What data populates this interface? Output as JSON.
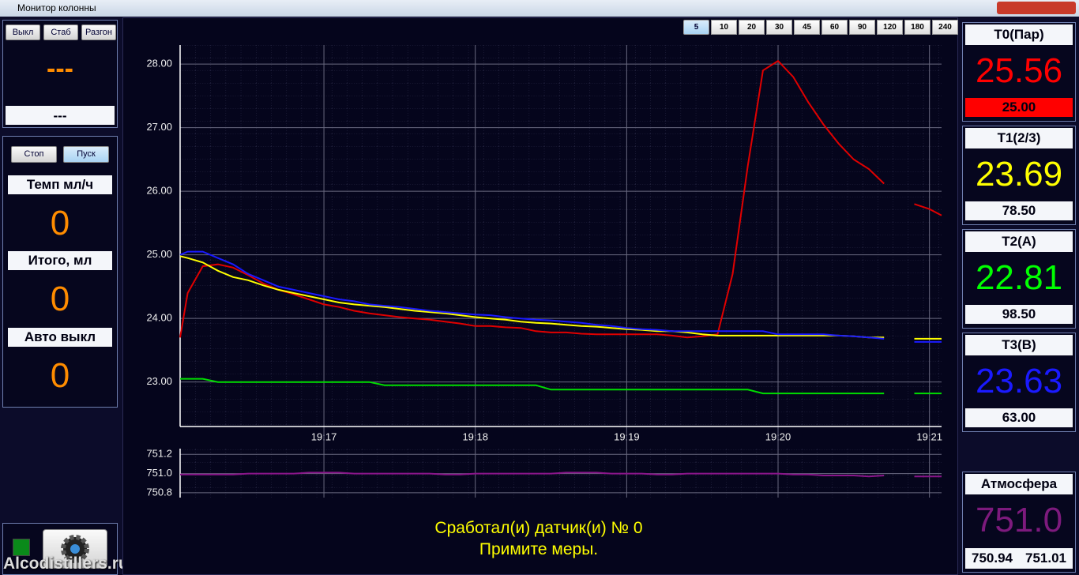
{
  "window": {
    "title": "Монитор колонны"
  },
  "mode_buttons": [
    "Выкл",
    "Стаб",
    "Разгон"
  ],
  "mode_display": {
    "value": "---",
    "status": "---"
  },
  "dose": {
    "buttons": [
      "Стоп",
      "Пуск"
    ],
    "fields": [
      {
        "label": "Темп мл/ч",
        "value": "0"
      },
      {
        "label": "Итого, мл",
        "value": "0"
      },
      {
        "label": "Авто выкл",
        "value": "0"
      }
    ]
  },
  "range_buttons": [
    "5",
    "10",
    "20",
    "30",
    "45",
    "60",
    "90",
    "120",
    "180",
    "240"
  ],
  "chart_data": [
    {
      "type": "line",
      "x": [
        16.05,
        16.1,
        16.2,
        16.3,
        16.4,
        16.5,
        16.6,
        16.7,
        16.8,
        16.9,
        17.0,
        17.1,
        17.2,
        17.3,
        17.4,
        17.5,
        17.6,
        17.7,
        17.8,
        17.9,
        18.0,
        18.1,
        18.2,
        18.3,
        18.4,
        18.5,
        18.6,
        18.7,
        18.8,
        18.9,
        19.0,
        19.1,
        19.2,
        19.3,
        19.4,
        19.5,
        19.6,
        19.7,
        19.8,
        19.9,
        20.0,
        20.1,
        20.2,
        20.3,
        20.4,
        20.5,
        20.6,
        20.7,
        20.8,
        20.9,
        21.0,
        21.08
      ],
      "xlim": [
        16.05,
        21.08
      ],
      "xticks": [
        {
          "value": 17,
          "label": "19:17"
        },
        {
          "value": 18,
          "label": "19:18"
        },
        {
          "value": 19,
          "label": "19:19"
        },
        {
          "value": 20,
          "label": "19:20"
        },
        {
          "value": 21,
          "label": "19:21"
        }
      ],
      "ylim": [
        22.3,
        28.3
      ],
      "yticks": [
        {
          "value": 23,
          "label": "23.00"
        },
        {
          "value": 24,
          "label": "24.00"
        },
        {
          "value": 25,
          "label": "25.00"
        },
        {
          "value": 26,
          "label": "26.00"
        },
        {
          "value": 27,
          "label": "27.00"
        },
        {
          "value": 28,
          "label": "28.00"
        }
      ],
      "grid": true,
      "series": [
        {
          "color": "#e00000",
          "values": [
            23.7,
            24.4,
            24.82,
            24.85,
            24.8,
            24.68,
            24.55,
            24.45,
            24.38,
            24.3,
            24.22,
            24.18,
            24.12,
            24.08,
            24.05,
            24.02,
            24.0,
            23.98,
            23.95,
            23.92,
            23.88,
            23.88,
            23.86,
            23.85,
            23.8,
            23.78,
            23.78,
            23.76,
            23.75,
            23.75,
            23.75,
            23.75,
            23.75,
            23.73,
            23.7,
            23.72,
            23.75,
            24.7,
            26.4,
            27.9,
            28.05,
            27.8,
            27.4,
            27.05,
            26.75,
            26.5,
            26.35,
            26.12,
            null,
            25.8,
            25.72,
            25.62
          ]
        },
        {
          "color": "#00dd00",
          "values": [
            23.05,
            23.05,
            23.05,
            23.0,
            23.0,
            23.0,
            23.0,
            23.0,
            23.0,
            23.0,
            23.0,
            23.0,
            23.0,
            23.0,
            22.95,
            22.95,
            22.95,
            22.95,
            22.95,
            22.95,
            22.95,
            22.95,
            22.95,
            22.95,
            22.95,
            22.88,
            22.88,
            22.88,
            22.88,
            22.88,
            22.88,
            22.88,
            22.88,
            22.88,
            22.88,
            22.88,
            22.88,
            22.88,
            22.88,
            22.82,
            22.82,
            22.82,
            22.82,
            22.82,
            22.82,
            22.82,
            22.82,
            22.82,
            null,
            22.82,
            22.82,
            22.82
          ]
        },
        {
          "color": "#ffff00",
          "values": [
            24.98,
            24.95,
            24.88,
            24.75,
            24.65,
            24.6,
            24.52,
            24.45,
            24.4,
            24.35,
            24.3,
            24.25,
            24.22,
            24.2,
            24.18,
            24.15,
            24.12,
            24.1,
            24.08,
            24.05,
            24.02,
            24.0,
            23.98,
            23.95,
            23.93,
            23.92,
            23.9,
            23.88,
            23.87,
            23.85,
            23.83,
            23.82,
            23.8,
            23.8,
            23.78,
            23.75,
            23.73,
            23.73,
            23.73,
            23.73,
            23.73,
            23.73,
            23.73,
            23.73,
            23.73,
            23.72,
            23.7,
            23.7,
            null,
            23.68,
            23.68,
            23.68
          ]
        },
        {
          "color": "#1a1aff",
          "values": [
            25.0,
            25.05,
            25.05,
            24.95,
            24.85,
            24.7,
            24.6,
            24.5,
            24.45,
            24.4,
            24.35,
            24.3,
            24.27,
            24.22,
            24.2,
            24.18,
            24.15,
            24.12,
            24.1,
            24.08,
            24.06,
            24.05,
            24.02,
            24.0,
            23.98,
            23.97,
            23.95,
            23.93,
            23.9,
            23.88,
            23.85,
            23.83,
            23.82,
            23.8,
            23.8,
            23.8,
            23.8,
            23.8,
            23.8,
            23.8,
            23.75,
            23.75,
            23.75,
            23.75,
            23.73,
            23.72,
            23.7,
            23.68,
            null,
            23.63,
            23.63,
            23.63
          ]
        }
      ]
    },
    {
      "type": "line",
      "x": [
        16.05,
        16.1,
        16.2,
        16.3,
        16.4,
        16.5,
        16.6,
        16.7,
        16.8,
        16.9,
        17.0,
        17.1,
        17.2,
        17.3,
        17.4,
        17.5,
        17.6,
        17.7,
        17.8,
        17.9,
        18.0,
        18.1,
        18.2,
        18.3,
        18.4,
        18.5,
        18.6,
        18.7,
        18.8,
        18.9,
        19.0,
        19.1,
        19.2,
        19.3,
        19.4,
        19.5,
        19.6,
        19.7,
        19.8,
        19.9,
        20.0,
        20.1,
        20.2,
        20.3,
        20.4,
        20.5,
        20.6,
        20.7,
        20.8,
        20.9,
        21.0,
        21.08
      ],
      "xlim": [
        16.05,
        21.08
      ],
      "ylim": [
        750.75,
        751.26
      ],
      "yticks": [
        750.8,
        {
          "value": 751.0,
          "label": "751.0"
        },
        751.2
      ],
      "grid": true,
      "series": [
        {
          "color": "#8a158a",
          "values": [
            750.99,
            750.99,
            750.99,
            750.99,
            750.99,
            751.0,
            751.0,
            751.0,
            751.0,
            751.01,
            751.01,
            751.01,
            751.0,
            751.0,
            751.0,
            751.0,
            751.0,
            751.0,
            750.99,
            750.99,
            751.0,
            751.0,
            751.0,
            751.0,
            751.0,
            751.0,
            751.01,
            751.01,
            751.01,
            751.0,
            751.0,
            751.0,
            750.99,
            750.99,
            751.0,
            751.0,
            751.0,
            751.0,
            751.0,
            751.0,
            751.0,
            750.99,
            750.99,
            750.98,
            750.98,
            750.98,
            750.97,
            750.98,
            null,
            750.97,
            750.97,
            750.97
          ]
        }
      ]
    }
  ],
  "alarm": [
    "Сработал(и) датчик(и) № 0",
    "Примите меры."
  ],
  "sensors": [
    {
      "name": "T0(Пар)",
      "value": "25.56",
      "setpoint": "25.00"
    },
    {
      "name": "T1(2/3)",
      "value": "23.69",
      "setpoint": "78.50"
    },
    {
      "name": "T2(A)",
      "value": "22.81",
      "setpoint": "98.50"
    },
    {
      "name": "T3(B)",
      "value": "23.63",
      "setpoint": "63.00"
    }
  ],
  "atmosphere": {
    "name": "Атмосфера",
    "value": "751.0",
    "min": "750.94",
    "max": "751.01"
  },
  "watermark": "Alcodistillers.ru"
}
